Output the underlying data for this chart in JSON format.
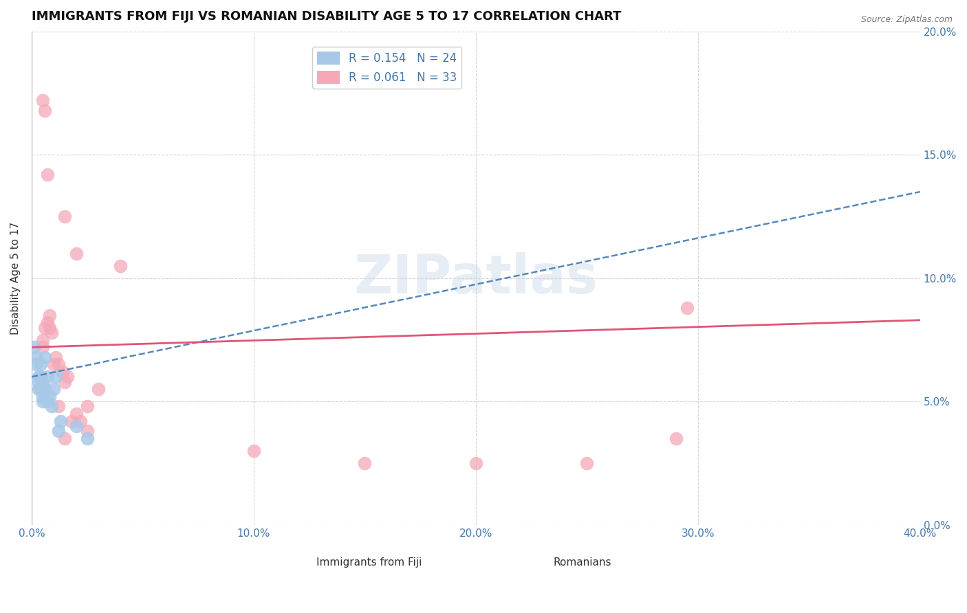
{
  "title": "IMMIGRANTS FROM FIJI VS ROMANIAN DISABILITY AGE 5 TO 17 CORRELATION CHART",
  "source": "Source: ZipAtlas.com",
  "xlabel_blue": "Immigrants from Fiji",
  "xlabel_pink": "Romanians",
  "ylabel": "Disability Age 5 to 17",
  "x_min": 0.0,
  "x_max": 0.4,
  "y_min": 0.0,
  "y_max": 0.2,
  "fiji_R": 0.154,
  "fiji_N": 24,
  "romanian_R": 0.061,
  "romanian_N": 33,
  "fiji_color": "#a8c8e8",
  "romanian_color": "#f4a8b8",
  "fiji_line_color": "#5588bb",
  "romanian_line_color": "#e05575",
  "watermark": "ZIPatlas",
  "fiji_points": [
    [
      0.001,
      0.072
    ],
    [
      0.002,
      0.068
    ],
    [
      0.002,
      0.065
    ],
    [
      0.003,
      0.06
    ],
    [
      0.003,
      0.058
    ],
    [
      0.003,
      0.055
    ],
    [
      0.004,
      0.065
    ],
    [
      0.004,
      0.06
    ],
    [
      0.004,
      0.055
    ],
    [
      0.005,
      0.058
    ],
    [
      0.005,
      0.052
    ],
    [
      0.005,
      0.05
    ],
    [
      0.006,
      0.068
    ],
    [
      0.006,
      0.055
    ],
    [
      0.007,
      0.06
    ],
    [
      0.007,
      0.05
    ],
    [
      0.008,
      0.052
    ],
    [
      0.009,
      0.048
    ],
    [
      0.01,
      0.055
    ],
    [
      0.011,
      0.06
    ],
    [
      0.012,
      0.038
    ],
    [
      0.013,
      0.042
    ],
    [
      0.02,
      0.04
    ],
    [
      0.025,
      0.035
    ]
  ],
  "romanian_points": [
    [
      0.005,
      0.172
    ],
    [
      0.006,
      0.168
    ],
    [
      0.007,
      0.142
    ],
    [
      0.015,
      0.125
    ],
    [
      0.02,
      0.11
    ],
    [
      0.04,
      0.105
    ],
    [
      0.005,
      0.075
    ],
    [
      0.005,
      0.072
    ],
    [
      0.006,
      0.08
    ],
    [
      0.007,
      0.082
    ],
    [
      0.008,
      0.085
    ],
    [
      0.008,
      0.08
    ],
    [
      0.009,
      0.078
    ],
    [
      0.01,
      0.065
    ],
    [
      0.011,
      0.068
    ],
    [
      0.012,
      0.065
    ],
    [
      0.014,
      0.062
    ],
    [
      0.015,
      0.058
    ],
    [
      0.016,
      0.06
    ],
    [
      0.012,
      0.048
    ],
    [
      0.018,
      0.042
    ],
    [
      0.02,
      0.045
    ],
    [
      0.022,
      0.042
    ],
    [
      0.025,
      0.048
    ],
    [
      0.03,
      0.055
    ],
    [
      0.025,
      0.038
    ],
    [
      0.015,
      0.035
    ],
    [
      0.1,
      0.03
    ],
    [
      0.15,
      0.025
    ],
    [
      0.2,
      0.025
    ],
    [
      0.25,
      0.025
    ],
    [
      0.29,
      0.035
    ],
    [
      0.295,
      0.088
    ]
  ],
  "grid_color": "#d0d0d0",
  "bg_color": "#ffffff",
  "title_fontsize": 13,
  "axis_label_fontsize": 11,
  "tick_fontsize": 11
}
